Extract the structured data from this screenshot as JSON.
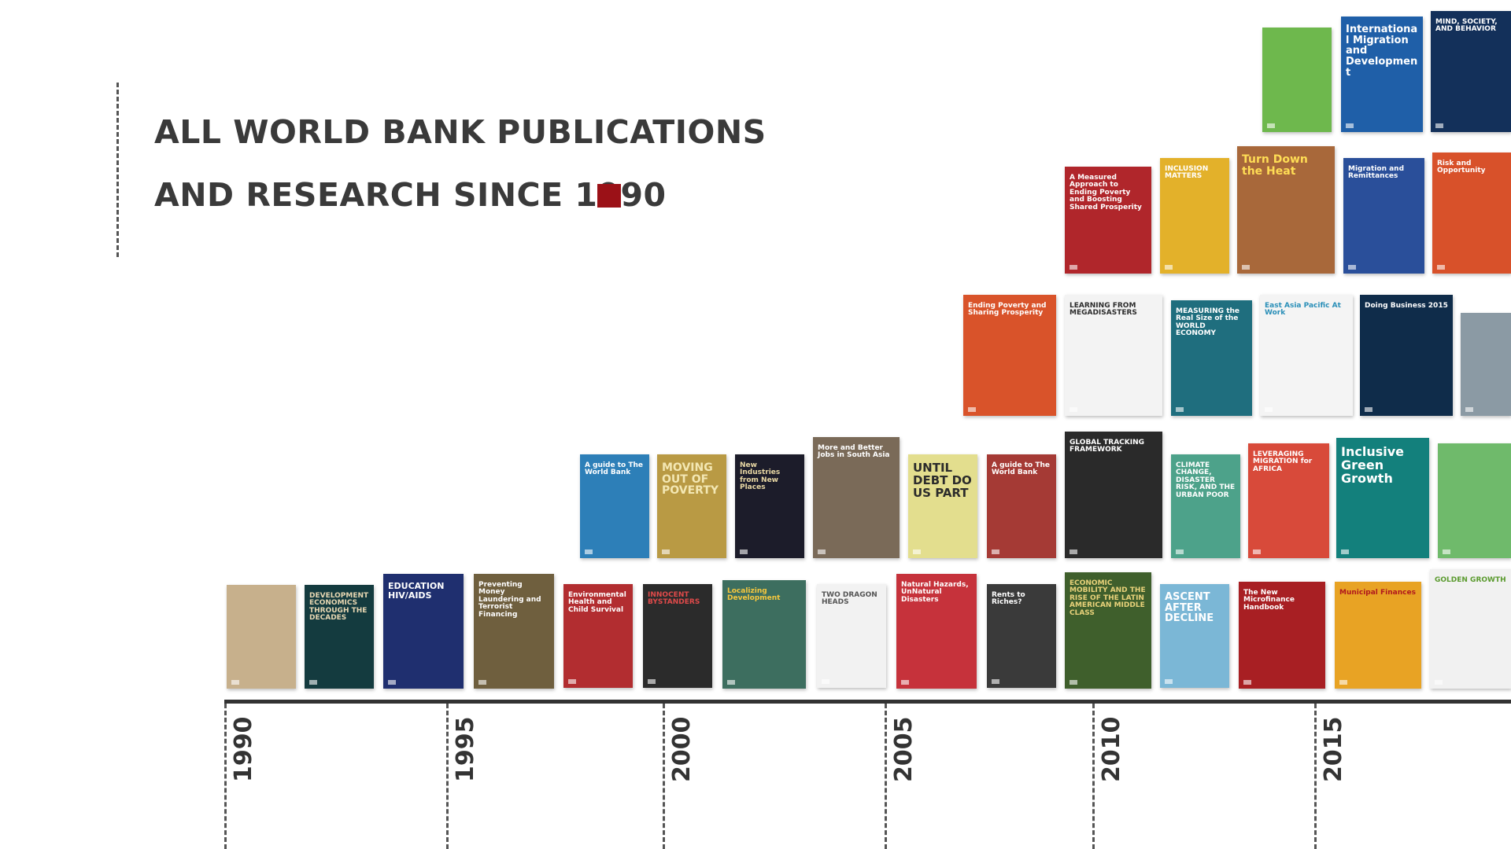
{
  "title": {
    "line1": "ALL WORLD BANK PUBLICATIONS",
    "line2": "AND RESEARCH SINCE 1990",
    "square_color": "#9b1117"
  },
  "timeline": {
    "years": [
      "1990",
      "1995",
      "2000",
      "2005",
      "2010",
      "2015"
    ]
  },
  "books": [
    {
      "id": "b1990-1",
      "title": "",
      "bg": "#c7b08c",
      "fg": "#ffffff"
    },
    {
      "id": "b1990-2",
      "title": "DEVELOPMENT ECONOMICS THROUGH THE DECADES",
      "bg": "#143b3f",
      "fg": "#e7d7b2"
    },
    {
      "id": "b1990-3",
      "title": "EDUCATION HIV/AIDS",
      "bg": "#1f2f6f",
      "fg": "#ffffff"
    },
    {
      "id": "b1990-4",
      "title": "Preventing Money Laundering and Terrorist Financing",
      "bg": "#6f5f3e",
      "fg": "#ffffff"
    },
    {
      "id": "b1990-5",
      "title": "Environmental Health and Child Survival",
      "bg": "#b22d30",
      "fg": "#ffffff"
    },
    {
      "id": "b1990-6",
      "title": "INNOCENT BYSTANDERS",
      "bg": "#2b2b2b",
      "fg": "#e04a4a"
    },
    {
      "id": "b1990-7",
      "title": "Localizing Development",
      "bg": "#3d6e5f",
      "fg": "#f7c83d"
    },
    {
      "id": "b1990-8",
      "title": "TWO DRAGON HEADS",
      "bg": "#f2f2f2",
      "fg": "#555555"
    },
    {
      "id": "b1990-9",
      "title": "Natural Hazards, UnNatural Disasters",
      "bg": "#c6323b",
      "fg": "#ffffff"
    },
    {
      "id": "b1990-10",
      "title": "Rents to Riches?",
      "bg": "#3a3a3a",
      "fg": "#ffffff"
    },
    {
      "id": "b1990-11",
      "title": "ECONOMIC MOBILITY AND THE RISE OF THE LATIN AMERICAN MIDDLE CLASS",
      "bg": "#3f5f2c",
      "fg": "#e9d27a"
    },
    {
      "id": "b1990-12",
      "title": "ASCENT AFTER DECLINE",
      "bg": "#7bb7d6",
      "fg": "#ffffff"
    },
    {
      "id": "b1990-13",
      "title": "The New Microfinance Handbook",
      "bg": "#a81f23",
      "fg": "#ffffff"
    },
    {
      "id": "b1990-14",
      "title": "Municipal Finances",
      "bg": "#e8a324",
      "fg": "#b0181d"
    },
    {
      "id": "b1990-15",
      "title": "GOLDEN GROWTH",
      "bg": "#f1f1f1",
      "fg": "#5a9a2e"
    },
    {
      "id": "b2000-1",
      "title": "A guide to The World Bank",
      "bg": "#2d7fb8",
      "fg": "#ffffff"
    },
    {
      "id": "b2000-2",
      "title": "MOVING OUT OF POVERTY",
      "bg": "#b99a44",
      "fg": "#f3e7b3"
    },
    {
      "id": "b2000-3",
      "title": "New Industries from New Places",
      "bg": "#1c1c2a",
      "fg": "#e9d8a4"
    },
    {
      "id": "b2000-4",
      "title": "More and Better Jobs in South Asia",
      "bg": "#7a6a58",
      "fg": "#ffffff"
    },
    {
      "id": "b2000-5",
      "title": "UNTIL DEBT DO US PART",
      "bg": "#e3de8e",
      "fg": "#2b2b2b"
    },
    {
      "id": "b2000-6",
      "title": "A guide to The World Bank",
      "bg": "#a53a35",
      "fg": "#ffffff"
    },
    {
      "id": "b2000-7",
      "title": "GLOBAL TRACKING FRAMEWORK",
      "bg": "#2a2a2a",
      "fg": "#ffffff"
    },
    {
      "id": "b2000-8",
      "title": "CLIMATE CHANGE, DISASTER RISK, AND THE URBAN POOR",
      "bg": "#4da28a",
      "fg": "#ffffff"
    },
    {
      "id": "b2000-9",
      "title": "LEVERAGING MIGRATION for AFRICA",
      "bg": "#d84a3a",
      "fg": "#ffffff"
    },
    {
      "id": "b2000-10",
      "title": "Inclusive Green Growth",
      "bg": "#13807c",
      "fg": "#ffffff"
    },
    {
      "id": "b2000-11",
      "title": "",
      "bg": "#6fba6b",
      "fg": "#ffffff"
    },
    {
      "id": "b2005-1",
      "title": "Ending Poverty and Sharing Prosperity",
      "bg": "#d9532a",
      "fg": "#ffffff"
    },
    {
      "id": "b2005-2",
      "title": "LEARNING FROM MEGADISASTERS",
      "bg": "#f3f3f3",
      "fg": "#2b2b2b"
    },
    {
      "id": "b2005-3",
      "title": "MEASURING the Real Size of the WORLD ECONOMY",
      "bg": "#1f6e7e",
      "fg": "#ffffff"
    },
    {
      "id": "b2005-4",
      "title": "East Asia Pacific At Work",
      "bg": "#f4f4f4",
      "fg": "#2a8fb8"
    },
    {
      "id": "b2005-5",
      "title": "Doing Business 2015",
      "bg": "#0f2c4a",
      "fg": "#ffffff"
    },
    {
      "id": "b2005-6",
      "title": "",
      "bg": "#8b9aa4",
      "fg": "#ffffff"
    },
    {
      "id": "b2010-1",
      "title": "A Measured Approach to Ending Poverty and Boosting Shared Prosperity",
      "bg": "#b0262b",
      "fg": "#ffffff"
    },
    {
      "id": "b2010-2",
      "title": "INCLUSION MATTERS",
      "bg": "#e3b12a",
      "fg": "#ffffff"
    },
    {
      "id": "b2010-3",
      "title": "Turn Down the Heat",
      "bg": "#a8683a",
      "fg": "#ffdd55"
    },
    {
      "id": "b2010-4",
      "title": "Migration and Remittances",
      "bg": "#2a4f9a",
      "fg": "#ffffff"
    },
    {
      "id": "b2010-5",
      "title": "Risk and Opportunity",
      "bg": "#d8512a",
      "fg": "#ffffff"
    },
    {
      "id": "b2015-1",
      "title": "",
      "bg": "#6eb84d",
      "fg": "#ffffff"
    },
    {
      "id": "b2015-2",
      "title": "International Migration and Development",
      "bg": "#1f5fa8",
      "fg": "#ffffff"
    },
    {
      "id": "b2015-3",
      "title": "MIND, SOCIETY, AND BEHAVIOR",
      "bg": "#13305a",
      "fg": "#ffffff"
    }
  ]
}
